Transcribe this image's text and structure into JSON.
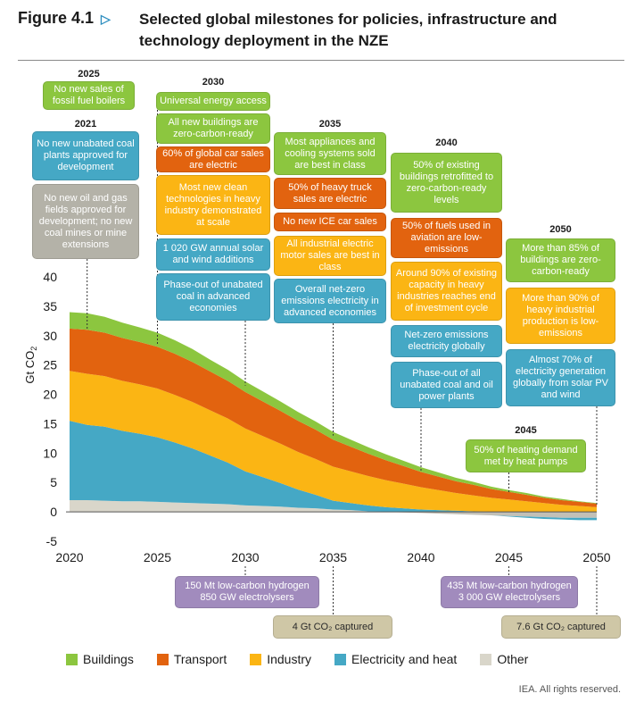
{
  "figure": {
    "label": "Figure 4.1",
    "title": "Selected global milestones for policies, infrastructure and technology deployment in the NZE",
    "copyright": "IEA. All rights reserved."
  },
  "colors": {
    "Buildings": "#8cc63f",
    "Transport": "#e2630f",
    "Industry": "#fbb514",
    "Electricity and heat": "#45a8c5",
    "Other": "#d9d6ca",
    "Other_negative": "#c2c0b7"
  },
  "chart_data": {
    "type": "area",
    "stacked": true,
    "ylabel": "Gt CO2",
    "xlabel": "",
    "xlim": [
      2020,
      2050
    ],
    "ylim": [
      -5,
      40
    ],
    "xticks": [
      2020,
      2025,
      2030,
      2035,
      2040,
      2045,
      2050
    ],
    "yticks": [
      -5,
      0,
      5,
      10,
      15,
      20,
      25,
      30,
      35,
      40
    ],
    "grid": false,
    "legend_position": "bottom",
    "x": [
      2020,
      2021,
      2022,
      2023,
      2024,
      2025,
      2026,
      2027,
      2028,
      2029,
      2030,
      2031,
      2032,
      2033,
      2034,
      2035,
      2036,
      2037,
      2038,
      2039,
      2040,
      2041,
      2042,
      2043,
      2044,
      2045,
      2046,
      2047,
      2048,
      2049,
      2050
    ],
    "series": [
      {
        "name": "Other",
        "values": [
          2.0,
          2.0,
          1.9,
          1.8,
          1.8,
          1.7,
          1.6,
          1.5,
          1.4,
          1.3,
          1.1,
          1.0,
          0.9,
          0.7,
          0.6,
          0.4,
          0.3,
          0.1,
          0.0,
          -0.1,
          -0.2,
          -0.3,
          -0.4,
          -0.5,
          -0.6,
          -0.7,
          -0.8,
          -0.9,
          -1.0,
          -1.0,
          -1.0
        ]
      },
      {
        "name": "Electricity and heat",
        "values": [
          13.5,
          12.8,
          12.6,
          12.0,
          11.5,
          11.0,
          10.2,
          9.3,
          8.2,
          7.1,
          5.8,
          4.9,
          4.0,
          3.1,
          2.3,
          1.5,
          1.2,
          1.0,
          0.8,
          0.6,
          0.4,
          0.3,
          0.2,
          0.1,
          0.0,
          -0.1,
          -0.2,
          -0.3,
          -0.3,
          -0.4,
          -0.4
        ]
      },
      {
        "name": "Industry",
        "values": [
          8.5,
          8.7,
          8.6,
          8.5,
          8.4,
          8.3,
          8.1,
          7.9,
          7.7,
          7.5,
          7.3,
          7.0,
          6.7,
          6.4,
          6.1,
          5.8,
          5.4,
          5.0,
          4.6,
          4.2,
          3.8,
          3.4,
          3.0,
          2.7,
          2.4,
          2.1,
          1.8,
          1.5,
          1.2,
          1.0,
          0.8
        ]
      },
      {
        "name": "Transport",
        "values": [
          7.2,
          7.5,
          7.4,
          7.3,
          7.2,
          7.1,
          7.0,
          6.8,
          6.6,
          6.4,
          6.2,
          5.9,
          5.6,
          5.3,
          5.0,
          4.6,
          4.2,
          3.8,
          3.4,
          3.0,
          2.6,
          2.3,
          2.0,
          1.8,
          1.5,
          1.3,
          1.1,
          0.9,
          0.8,
          0.7,
          0.6
        ]
      },
      {
        "name": "Buildings",
        "values": [
          2.8,
          2.8,
          2.7,
          2.6,
          2.5,
          2.4,
          2.3,
          2.2,
          2.0,
          1.9,
          1.8,
          1.7,
          1.6,
          1.5,
          1.4,
          1.3,
          1.2,
          1.1,
          1.0,
          0.9,
          0.8,
          0.7,
          0.6,
          0.5,
          0.4,
          0.3,
          0.3,
          0.2,
          0.2,
          0.1,
          0.1
        ]
      }
    ],
    "milestones_above": [
      {
        "year": "2025",
        "anchor_x": 2025,
        "items": [
          {
            "text": "No new sales of fossil fuel boilers",
            "sector": "Buildings"
          }
        ]
      },
      {
        "year": "2021",
        "anchor_x": 2021,
        "items": [
          {
            "text": "No new unabated coal plants approved for development",
            "sector": "Electricity and heat"
          },
          {
            "text": "No new oil and gas fields approved for development; no new coal mines or mine extensions",
            "sector": "Other"
          }
        ]
      },
      {
        "year": "2030",
        "anchor_x": 2030,
        "items": [
          {
            "text": "Universal energy access",
            "sector": "Buildings"
          },
          {
            "text": "All new buildings are zero-carbon-ready",
            "sector": "Buildings"
          },
          {
            "text": "60% of global car sales are electric",
            "sector": "Transport"
          },
          {
            "text": "Most new clean technologies in heavy industry demonstrated at scale",
            "sector": "Industry"
          },
          {
            "text": "1 020 GW annual solar and wind additions",
            "sector": "Electricity and heat"
          },
          {
            "text": "Phase-out of unabated coal in advanced economies",
            "sector": "Electricity and heat"
          }
        ]
      },
      {
        "year": "2035",
        "anchor_x": 2035,
        "items": [
          {
            "text": "Most appliances and cooling systems sold are best in class",
            "sector": "Buildings"
          },
          {
            "text": "50% of heavy truck sales are electric",
            "sector": "Transport"
          },
          {
            "text": "No new ICE car sales",
            "sector": "Transport"
          },
          {
            "text": "All industrial electric motor sales are best in class",
            "sector": "Industry"
          },
          {
            "text": "Overall net-zero emissions electricity in advanced economies",
            "sector": "Electricity and heat"
          }
        ]
      },
      {
        "year": "2040",
        "anchor_x": 2040,
        "items": [
          {
            "text": "50% of existing buildings retrofitted to zero-carbon-ready levels",
            "sector": "Buildings"
          },
          {
            "text": "50% of fuels used in aviation are low-emissions",
            "sector": "Transport"
          },
          {
            "text": "Around 90% of existing capacity in heavy industries reaches end of investment cycle",
            "sector": "Industry"
          },
          {
            "text": "Net-zero emissions electricity globally",
            "sector": "Electricity and heat"
          },
          {
            "text": "Phase-out of all unabated coal and oil power plants",
            "sector": "Electricity and heat"
          }
        ]
      },
      {
        "year": "2050",
        "anchor_x": 2050,
        "items": [
          {
            "text": "More than 85% of buildings are zero-carbon-ready",
            "sector": "Buildings"
          },
          {
            "text": "More than 90% of heavy industrial production is low-emissions",
            "sector": "Industry"
          },
          {
            "text": "Almost 70% of electricity generation globally from solar PV and wind",
            "sector": "Electricity and heat"
          }
        ]
      },
      {
        "year": "2045",
        "anchor_x": 2045,
        "items": [
          {
            "text": "50% of heating demand met by heat pumps",
            "sector": "Buildings"
          }
        ]
      }
    ],
    "milestones_below": [
      {
        "anchor_x": 2030,
        "text": "150 Mt low-carbon hydrogen 850 GW electrolysers",
        "kind": "hydrogen"
      },
      {
        "anchor_x": 2045,
        "text": "435 Mt low-carbon hydrogen 3 000 GW electrolysers",
        "kind": "hydrogen"
      },
      {
        "anchor_x": 2035,
        "text": "4 Gt CO₂ captured",
        "kind": "ccus"
      },
      {
        "anchor_x": 2050,
        "text": "7.6 Gt CO₂ captured",
        "kind": "ccus"
      }
    ]
  },
  "legend": [
    {
      "label": "Buildings",
      "color": "#8cc63f"
    },
    {
      "label": "Transport",
      "color": "#e2630f"
    },
    {
      "label": "Industry",
      "color": "#fbb514"
    },
    {
      "label": "Electricity and heat",
      "color": "#45a8c5"
    },
    {
      "label": "Other",
      "color": "#d9d6ca"
    }
  ]
}
